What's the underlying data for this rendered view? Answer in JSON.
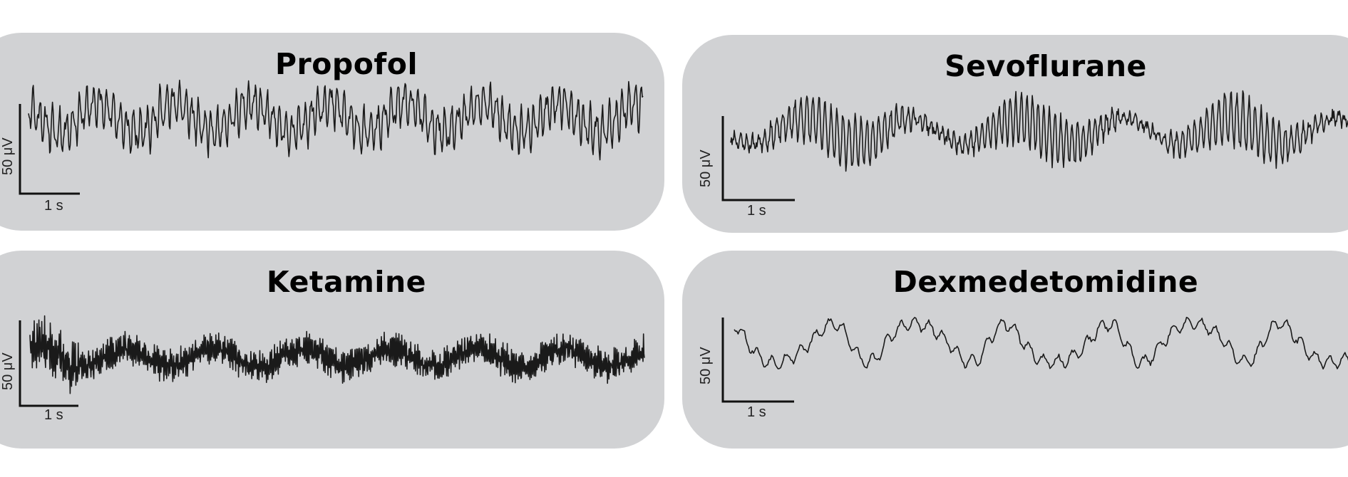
{
  "panels": [
    {
      "title": "Propofol",
      "scale_v": "50 μV",
      "scale_h": "1 s",
      "style": "alpha",
      "seed": 11
    },
    {
      "title": "Sevoflurane",
      "scale_v": "50 μV",
      "scale_h": "1 s",
      "style": "sevo",
      "seed": 23
    },
    {
      "title": "Ketamine",
      "scale_v": "50 μV",
      "scale_h": "1 s",
      "style": "gamma",
      "seed": 37
    },
    {
      "title": "Dexmedetomidine",
      "scale_v": "50 μV",
      "scale_h": "1 s",
      "style": "slow",
      "seed": 53
    }
  ],
  "colors": {
    "panel": "#d1d2d4",
    "trace": "#1a1a1a",
    "background": "#ffffff"
  }
}
